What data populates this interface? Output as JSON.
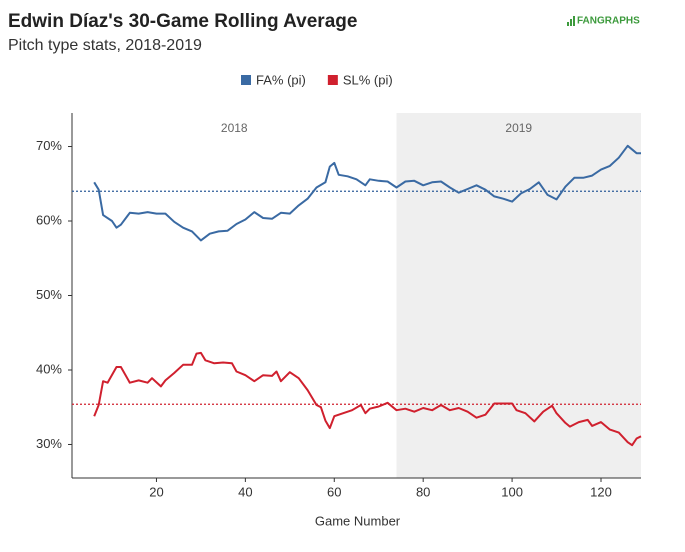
{
  "chart_data": {
    "type": "line",
    "title": "Edwin Díaz's 30-Game Rolling Average",
    "subtitle": "Pitch type stats, 2018-2019",
    "logo": "FANGRAPHS",
    "x_label": "Game Number",
    "xlim": [
      1,
      129
    ],
    "xticks": [
      20,
      40,
      60,
      80,
      100,
      120
    ],
    "ylim": [
      25.5,
      74.5
    ],
    "yticks": [
      {
        "value": 30,
        "label": "30%"
      },
      {
        "value": 40,
        "label": "40%"
      },
      {
        "value": 50,
        "label": "50%"
      },
      {
        "value": 60,
        "label": "60%"
      },
      {
        "value": 70,
        "label": "70%"
      }
    ],
    "legend": "top",
    "regions": [
      {
        "label": "2018",
        "from": 1,
        "to": 74,
        "shaded": false
      },
      {
        "label": "2019",
        "from": 74,
        "to": 129,
        "shaded": true
      }
    ],
    "reference_lines": [
      {
        "value": 64,
        "color": "#2f5d9a"
      },
      {
        "value": 35.4,
        "color": "#d0202e"
      }
    ],
    "series": [
      {
        "name": "FA% (pi)",
        "color": "#3a6aa3",
        "x": [
          6,
          7,
          8,
          10,
          11,
          12,
          14,
          16,
          18,
          20,
          22,
          24,
          26,
          28,
          30,
          32,
          34,
          36,
          38,
          40,
          42,
          44,
          46,
          48,
          50,
          52,
          54,
          56,
          58,
          59,
          60,
          61,
          63,
          65,
          67,
          68,
          70,
          72,
          74,
          76,
          78,
          80,
          82,
          84,
          86,
          88,
          90,
          92,
          94,
          96,
          98,
          100,
          102,
          104,
          106,
          108,
          110,
          112,
          114,
          116,
          118,
          120,
          122,
          124,
          126,
          128,
          129
        ],
        "values": [
          65.2,
          64.2,
          60.8,
          60,
          59.1,
          59.5,
          61.1,
          61,
          61.2,
          61,
          61,
          59.9,
          59.1,
          58.6,
          57.4,
          58.3,
          58.6,
          58.7,
          59.6,
          60.2,
          61.2,
          60.4,
          60.3,
          61.1,
          61,
          62.1,
          63,
          64.5,
          65.2,
          67.3,
          67.8,
          66.2,
          66,
          65.6,
          64.8,
          65.6,
          65.4,
          65.3,
          64.5,
          65.3,
          65.4,
          64.8,
          65.2,
          65.3,
          64.5,
          63.8,
          64.3,
          64.8,
          64.2,
          63.3,
          63,
          62.6,
          63.7,
          64.3,
          65.2,
          63.5,
          62.9,
          64.6,
          65.8,
          65.8,
          66.1,
          66.9,
          67.4,
          68.5,
          70.1,
          69.1,
          69.1
        ]
      },
      {
        "name": "SL% (pi)",
        "color": "#d0202e",
        "x": [
          6,
          7,
          8,
          9,
          11,
          12,
          14,
          16,
          18,
          19,
          21,
          22,
          24,
          26,
          28,
          29,
          30,
          31,
          33,
          35,
          37,
          38,
          40,
          42,
          44,
          46,
          47,
          48,
          50,
          52,
          54,
          56,
          57,
          58,
          59,
          60,
          62,
          64,
          66,
          67,
          68,
          70,
          72,
          74,
          76,
          78,
          80,
          82,
          84,
          86,
          88,
          90,
          92,
          94,
          96,
          98,
          100,
          101,
          103,
          105,
          107,
          109,
          110,
          112,
          113,
          115,
          117,
          118,
          120,
          122,
          124,
          126,
          127,
          128,
          129
        ],
        "values": [
          33.8,
          35.3,
          38.5,
          38.3,
          40.4,
          40.4,
          38.3,
          38.6,
          38.3,
          38.9,
          37.8,
          38.6,
          39.6,
          40.7,
          40.7,
          42.2,
          42.3,
          41.3,
          40.9,
          41,
          40.9,
          39.8,
          39.3,
          38.5,
          39.3,
          39.2,
          39.8,
          38.5,
          39.7,
          38.9,
          37.3,
          35.3,
          35,
          33.2,
          32.2,
          33.8,
          34.2,
          34.6,
          35.3,
          34.2,
          34.8,
          35.1,
          35.6,
          34.6,
          34.8,
          34.4,
          34.9,
          34.6,
          35.3,
          34.6,
          34.9,
          34.4,
          33.6,
          34,
          35.5,
          35.5,
          35.5,
          34.6,
          34.2,
          33.1,
          34.4,
          35.2,
          34.2,
          32.9,
          32.4,
          33,
          33.3,
          32.5,
          33,
          32,
          31.6,
          30.3,
          29.9,
          30.8,
          31.1
        ]
      }
    ]
  }
}
